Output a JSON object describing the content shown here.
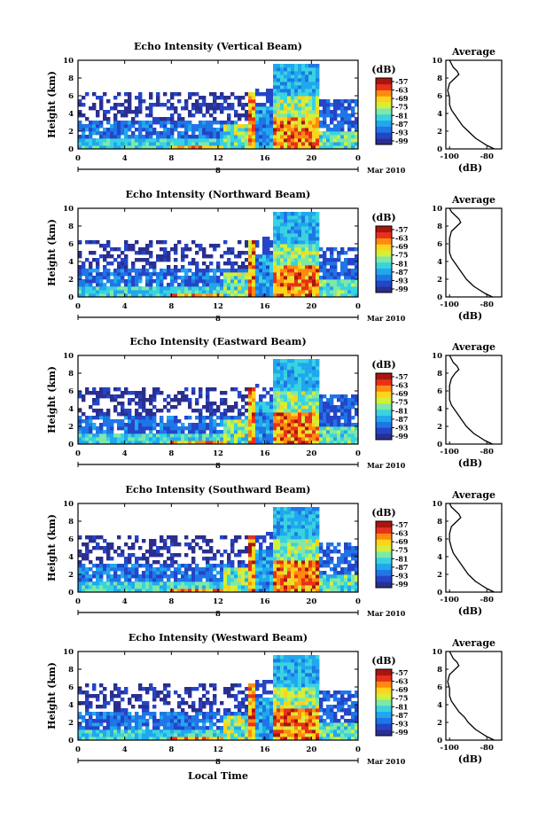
{
  "figure": {
    "xlabel": "Local Time",
    "date_label": "Mar 2010",
    "day_label": "8"
  },
  "colorbar": {
    "unit_label": "(dB)",
    "ticks": [
      "-57",
      "-63",
      "-69",
      "-75",
      "-81",
      "-87",
      "-93",
      "-99"
    ],
    "colors": [
      "#2a2f8f",
      "#2445c8",
      "#1f76e6",
      "#21a7ee",
      "#39d3e0",
      "#7ee8a8",
      "#d2f03a",
      "#ffd21c",
      "#ff8a10",
      "#e8301a",
      "#a8160e"
    ]
  },
  "chart_data": [
    {
      "type": "heatmap",
      "title": "Echo Intensity (Vertical Beam)",
      "ylabel": "Height (km)",
      "x_ticks": [
        "0",
        "4",
        "8",
        "12",
        "16",
        "20",
        "0"
      ],
      "y_ticks": [
        "0",
        "2",
        "4",
        "6",
        "8",
        "10"
      ],
      "xlim": [
        0,
        24
      ],
      "ylim": [
        0,
        10
      ],
      "profile": {
        "title": "Average",
        "xlabel": "(dB)",
        "x_ticks": [
          "-100",
          "-80"
        ],
        "y_ticks": [
          "0",
          "2",
          "4",
          "6",
          "8",
          "10"
        ],
        "points": [
          [
            -76,
            0
          ],
          [
            -80,
            0.4
          ],
          [
            -83,
            0.8
          ],
          [
            -86,
            1.2
          ],
          [
            -88,
            1.6
          ],
          [
            -90,
            2
          ],
          [
            -93,
            2.6
          ],
          [
            -95,
            3.2
          ],
          [
            -97,
            3.8
          ],
          [
            -99,
            4.4
          ],
          [
            -100,
            5
          ],
          [
            -100,
            5.8
          ],
          [
            -101,
            6.6
          ],
          [
            -100,
            7.4
          ],
          [
            -97,
            8
          ],
          [
            -95,
            8.4
          ],
          [
            -96,
            8.8
          ],
          [
            -98,
            9.2
          ],
          [
            -99,
            9.6
          ],
          [
            -100,
            10
          ]
        ]
      }
    },
    {
      "type": "heatmap",
      "title": "Echo Intensity (Northward Beam)",
      "ylabel": "Height (km)",
      "x_ticks": [
        "0",
        "4",
        "8",
        "12",
        "16",
        "20",
        "0"
      ],
      "y_ticks": [
        "0",
        "2",
        "4",
        "6",
        "8",
        "10"
      ],
      "xlim": [
        0,
        24
      ],
      "ylim": [
        0,
        10
      ],
      "profile": {
        "title": "Average",
        "xlabel": "(dB)",
        "x_ticks": [
          "-100",
          "-80"
        ],
        "y_ticks": [
          "0",
          "2",
          "4",
          "6",
          "8",
          "10"
        ],
        "points": [
          [
            -77,
            0
          ],
          [
            -81,
            0.4
          ],
          [
            -84,
            0.8
          ],
          [
            -87,
            1.2
          ],
          [
            -89,
            1.6
          ],
          [
            -91,
            2
          ],
          [
            -93,
            2.6
          ],
          [
            -95,
            3.2
          ],
          [
            -97,
            3.8
          ],
          [
            -99,
            4.4
          ],
          [
            -100,
            5
          ],
          [
            -100,
            5.8
          ],
          [
            -100,
            6.6
          ],
          [
            -99,
            7.4
          ],
          [
            -96,
            8
          ],
          [
            -94,
            8.4
          ],
          [
            -95,
            8.8
          ],
          [
            -97,
            9.2
          ],
          [
            -99,
            9.6
          ],
          [
            -100,
            10
          ]
        ]
      }
    },
    {
      "type": "heatmap",
      "title": "Echo Intensity (Eastward Beam)",
      "ylabel": "Height (km)",
      "x_ticks": [
        "0",
        "4",
        "8",
        "12",
        "16",
        "20",
        "0"
      ],
      "y_ticks": [
        "0",
        "2",
        "4",
        "6",
        "8",
        "10"
      ],
      "xlim": [
        0,
        24
      ],
      "ylim": [
        0,
        10
      ],
      "profile": {
        "title": "Average",
        "xlabel": "(dB)",
        "x_ticks": [
          "-100",
          "-80"
        ],
        "y_ticks": [
          "0",
          "2",
          "4",
          "6",
          "8",
          "10"
        ],
        "points": [
          [
            -77,
            0
          ],
          [
            -81,
            0.4
          ],
          [
            -84,
            0.8
          ],
          [
            -87,
            1.2
          ],
          [
            -89,
            1.6
          ],
          [
            -91,
            2
          ],
          [
            -93,
            2.6
          ],
          [
            -95,
            3.2
          ],
          [
            -97,
            3.8
          ],
          [
            -99,
            4.4
          ],
          [
            -100,
            5
          ],
          [
            -100,
            5.8
          ],
          [
            -100,
            6.6
          ],
          [
            -99,
            7.4
          ],
          [
            -97,
            8
          ],
          [
            -95,
            8.4
          ],
          [
            -96,
            8.8
          ],
          [
            -98,
            9.2
          ],
          [
            -99,
            9.6
          ],
          [
            -100,
            10
          ]
        ]
      }
    },
    {
      "type": "heatmap",
      "title": "Echo Intensity (Southward Beam)",
      "ylabel": "Height (km)",
      "x_ticks": [
        "0",
        "4",
        "8",
        "12",
        "16",
        "20",
        "0"
      ],
      "y_ticks": [
        "0",
        "2",
        "4",
        "6",
        "8",
        "10"
      ],
      "xlim": [
        0,
        24
      ],
      "ylim": [
        0,
        10
      ],
      "profile": {
        "title": "Average",
        "xlabel": "(dB)",
        "x_ticks": [
          "-100",
          "-80"
        ],
        "y_ticks": [
          "0",
          "2",
          "4",
          "6",
          "8",
          "10"
        ],
        "points": [
          [
            -76,
            0
          ],
          [
            -80,
            0.4
          ],
          [
            -83,
            0.8
          ],
          [
            -86,
            1.2
          ],
          [
            -88,
            1.6
          ],
          [
            -90,
            2
          ],
          [
            -92,
            2.6
          ],
          [
            -94,
            3.2
          ],
          [
            -96,
            3.8
          ],
          [
            -98,
            4.4
          ],
          [
            -99,
            5
          ],
          [
            -100,
            5.8
          ],
          [
            -100,
            6.6
          ],
          [
            -99,
            7.4
          ],
          [
            -96,
            8
          ],
          [
            -94,
            8.4
          ],
          [
            -95,
            8.8
          ],
          [
            -97,
            9.2
          ],
          [
            -99,
            9.6
          ],
          [
            -100,
            10
          ]
        ]
      }
    },
    {
      "type": "heatmap",
      "title": "Echo Intensity (Westward Beam)",
      "ylabel": "Height (km)",
      "x_ticks": [
        "0",
        "4",
        "8",
        "12",
        "16",
        "20",
        "0"
      ],
      "y_ticks": [
        "0",
        "2",
        "4",
        "6",
        "8",
        "10"
      ],
      "xlim": [
        0,
        24
      ],
      "ylim": [
        0,
        10
      ],
      "profile": {
        "title": "Average",
        "xlabel": "(dB)",
        "x_ticks": [
          "-100",
          "-80"
        ],
        "y_ticks": [
          "0",
          "2",
          "4",
          "6",
          "8",
          "10"
        ],
        "points": [
          [
            -76,
            0
          ],
          [
            -80,
            0.4
          ],
          [
            -83,
            0.8
          ],
          [
            -86,
            1.2
          ],
          [
            -88,
            1.6
          ],
          [
            -90,
            2
          ],
          [
            -92,
            2.6
          ],
          [
            -95,
            3.2
          ],
          [
            -97,
            3.8
          ],
          [
            -99,
            4.4
          ],
          [
            -100,
            5
          ],
          [
            -100,
            5.8
          ],
          [
            -101,
            6.6
          ],
          [
            -100,
            7.4
          ],
          [
            -97,
            8
          ],
          [
            -95,
            8.4
          ],
          [
            -96,
            8.8
          ],
          [
            -98,
            9.2
          ],
          [
            -99,
            9.6
          ],
          [
            -100,
            10
          ]
        ]
      }
    }
  ]
}
